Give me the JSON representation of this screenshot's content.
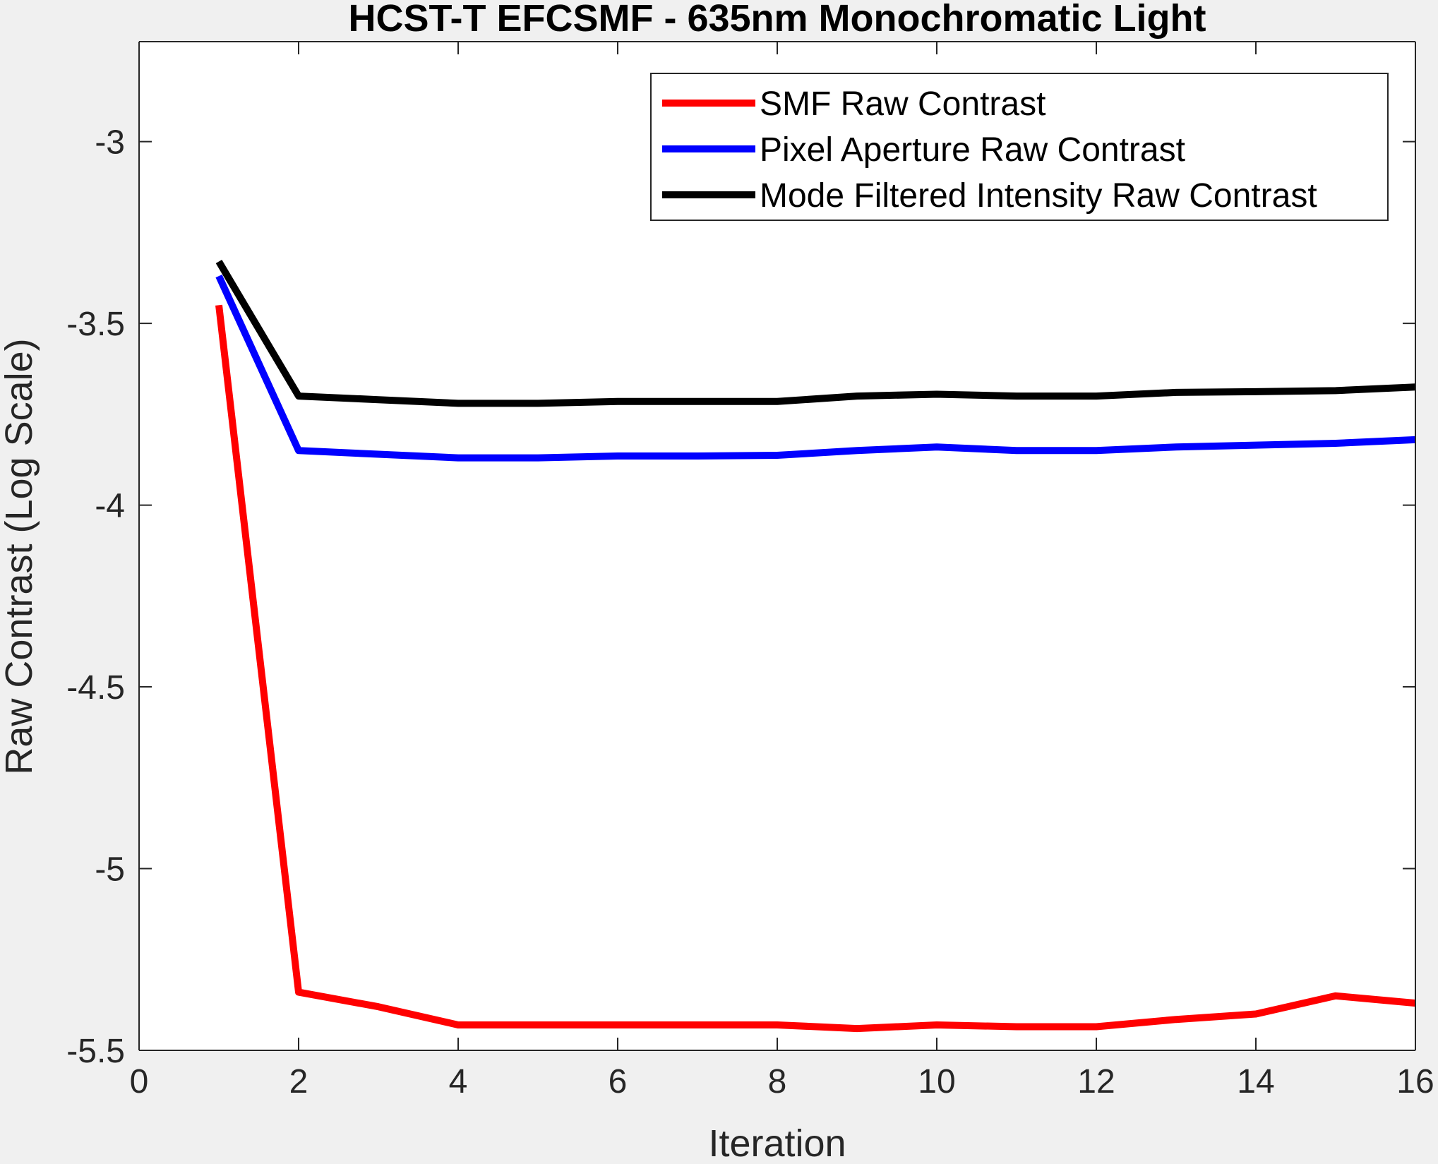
{
  "chart_data": {
    "type": "line",
    "title": "HCST-T EFCSMF - 635nm Monochromatic Light",
    "xlabel": "Iteration",
    "ylabel": "Raw Contrast (Log Scale)",
    "xlim": [
      0,
      16
    ],
    "ylim": [
      -5.5,
      -2.725
    ],
    "xticks": [
      0,
      2,
      4,
      6,
      8,
      10,
      12,
      14,
      16
    ],
    "xtick_labels": [
      "0",
      "2",
      "4",
      "6",
      "8",
      "10",
      "12",
      "14",
      "16"
    ],
    "yticks": [
      -3,
      -3.5,
      -4,
      -4.5,
      -5,
      -5.5
    ],
    "ytick_labels": [
      "-3",
      "-3.5",
      "-4",
      "-4.5",
      "-5",
      "-5.5"
    ],
    "grid": false,
    "legend_position": "top-right",
    "x": [
      1,
      2,
      3,
      4,
      5,
      6,
      7,
      8,
      9,
      10,
      11,
      12,
      13,
      14,
      15,
      16
    ],
    "series": [
      {
        "name": "SMF Raw Contrast",
        "color": "#ff0000",
        "values": [
          -3.45,
          -5.34,
          -5.38,
          -5.43,
          -5.43,
          -5.43,
          -5.43,
          -5.43,
          -5.44,
          -5.43,
          -5.435,
          -5.435,
          -5.415,
          -5.4,
          -5.35,
          -5.37
        ]
      },
      {
        "name": "Pixel Aperture Raw Contrast",
        "color": "#0000ff",
        "values": [
          -3.37,
          -3.85,
          -3.86,
          -3.87,
          -3.87,
          -3.865,
          -3.865,
          -3.863,
          -3.85,
          -3.84,
          -3.85,
          -3.85,
          -3.84,
          -3.835,
          -3.83,
          -3.82
        ]
      },
      {
        "name": "Mode Filtered Intensity Raw Contrast",
        "color": "#000000",
        "values": [
          -3.33,
          -3.7,
          -3.71,
          -3.72,
          -3.72,
          -3.715,
          -3.715,
          -3.715,
          -3.7,
          -3.695,
          -3.7,
          -3.7,
          -3.69,
          -3.688,
          -3.685,
          -3.675
        ]
      }
    ]
  }
}
